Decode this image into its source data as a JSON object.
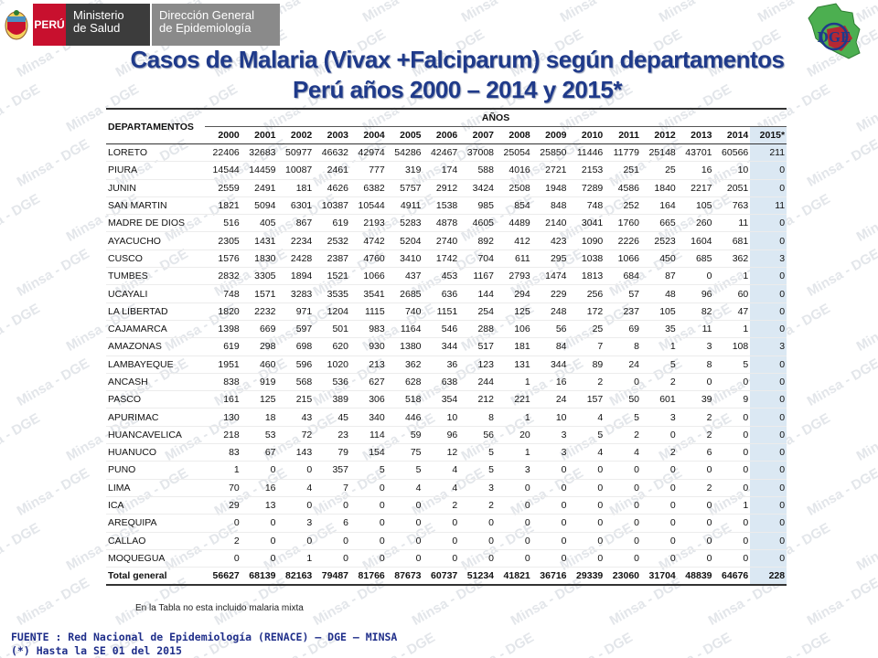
{
  "header": {
    "peru_label": "PERÚ",
    "ministry_line1": "Ministerio",
    "ministry_line2": "de Salud",
    "dge_line1": "Dirección General",
    "dge_line2": "de Epidemiología",
    "dge_logo_text": "DGE"
  },
  "watermark_text": "Minsa - DGE",
  "title_line1": "Casos de Malaria (Vivax +Falciparum) según departamentos",
  "title_line2": "Perú años 2000 – 2014 y 2015*",
  "table": {
    "dept_header": "DEPARTAMENTOS",
    "years_header": "AÑOS",
    "years": [
      "2000",
      "2001",
      "2002",
      "2003",
      "2004",
      "2005",
      "2006",
      "2007",
      "2008",
      "2009",
      "2010",
      "2011",
      "2012",
      "2013",
      "2014",
      "2015*"
    ],
    "rows": [
      {
        "dept": "LORETO",
        "values": [
          "22406",
          "32683",
          "50977",
          "46632",
          "42974",
          "54286",
          "42467",
          "37008",
          "25054",
          "25850",
          "11446",
          "11779",
          "25148",
          "43701",
          "60566",
          "211"
        ]
      },
      {
        "dept": "PIURA",
        "values": [
          "14544",
          "14459",
          "10087",
          "2461",
          "777",
          "319",
          "174",
          "588",
          "4016",
          "2721",
          "2153",
          "251",
          "25",
          "16",
          "10",
          "0"
        ]
      },
      {
        "dept": "JUNIN",
        "values": [
          "2559",
          "2491",
          "181",
          "4626",
          "6382",
          "5757",
          "2912",
          "3424",
          "2508",
          "1948",
          "7289",
          "4586",
          "1840",
          "2217",
          "2051",
          "0"
        ]
      },
      {
        "dept": "SAN MARTIN",
        "values": [
          "1821",
          "5094",
          "6301",
          "10387",
          "10544",
          "4911",
          "1538",
          "985",
          "854",
          "848",
          "748",
          "252",
          "164",
          "105",
          "763",
          "11"
        ]
      },
      {
        "dept": "MADRE DE DIOS",
        "values": [
          "516",
          "405",
          "867",
          "619",
          "2193",
          "5283",
          "4878",
          "4605",
          "4489",
          "2140",
          "3041",
          "1760",
          "665",
          "260",
          "11",
          "0"
        ]
      },
      {
        "dept": "AYACUCHO",
        "values": [
          "2305",
          "1431",
          "2234",
          "2532",
          "4742",
          "5204",
          "2740",
          "892",
          "412",
          "423",
          "1090",
          "2226",
          "2523",
          "1604",
          "681",
          "0"
        ]
      },
      {
        "dept": "CUSCO",
        "values": [
          "1576",
          "1830",
          "2428",
          "2387",
          "4760",
          "3410",
          "1742",
          "704",
          "611",
          "295",
          "1038",
          "1066",
          "450",
          "685",
          "362",
          "3"
        ]
      },
      {
        "dept": "TUMBES",
        "values": [
          "2832",
          "3305",
          "1894",
          "1521",
          "1066",
          "437",
          "453",
          "1167",
          "2793",
          "1474",
          "1813",
          "684",
          "87",
          "0",
          "1",
          "0"
        ]
      },
      {
        "dept": "UCAYALI",
        "values": [
          "748",
          "1571",
          "3283",
          "3535",
          "3541",
          "2685",
          "636",
          "144",
          "294",
          "229",
          "256",
          "57",
          "48",
          "96",
          "60",
          "0"
        ]
      },
      {
        "dept": "LA LIBERTAD",
        "values": [
          "1820",
          "2232",
          "971",
          "1204",
          "1115",
          "740",
          "1151",
          "254",
          "125",
          "248",
          "172",
          "237",
          "105",
          "82",
          "47",
          "0"
        ]
      },
      {
        "dept": "CAJAMARCA",
        "values": [
          "1398",
          "669",
          "597",
          "501",
          "983",
          "1164",
          "546",
          "288",
          "106",
          "56",
          "25",
          "69",
          "35",
          "11",
          "1",
          "0"
        ]
      },
      {
        "dept": "AMAZONAS",
        "values": [
          "619",
          "298",
          "698",
          "620",
          "930",
          "1380",
          "344",
          "517",
          "181",
          "84",
          "7",
          "8",
          "1",
          "3",
          "108",
          "3"
        ]
      },
      {
        "dept": "LAMBAYEQUE",
        "values": [
          "1951",
          "460",
          "596",
          "1020",
          "213",
          "362",
          "36",
          "123",
          "131",
          "344",
          "89",
          "24",
          "5",
          "8",
          "5",
          "0"
        ]
      },
      {
        "dept": "ANCASH",
        "values": [
          "838",
          "919",
          "568",
          "536",
          "627",
          "628",
          "638",
          "244",
          "1",
          "16",
          "2",
          "0",
          "2",
          "0",
          "0",
          "0"
        ]
      },
      {
        "dept": "PASCO",
        "values": [
          "161",
          "125",
          "215",
          "389",
          "306",
          "518",
          "354",
          "212",
          "221",
          "24",
          "157",
          "50",
          "601",
          "39",
          "9",
          "0"
        ]
      },
      {
        "dept": "APURIMAC",
        "values": [
          "130",
          "18",
          "43",
          "45",
          "340",
          "446",
          "10",
          "8",
          "1",
          "10",
          "4",
          "5",
          "3",
          "2",
          "0",
          "0"
        ]
      },
      {
        "dept": "HUANCAVELICA",
        "values": [
          "218",
          "53",
          "72",
          "23",
          "114",
          "59",
          "96",
          "56",
          "20",
          "3",
          "5",
          "2",
          "0",
          "2",
          "0",
          "0"
        ]
      },
      {
        "dept": "HUANUCO",
        "values": [
          "83",
          "67",
          "143",
          "79",
          "154",
          "75",
          "12",
          "5",
          "1",
          "3",
          "4",
          "4",
          "2",
          "6",
          "0",
          "0"
        ]
      },
      {
        "dept": "PUNO",
        "values": [
          "1",
          "0",
          "0",
          "357",
          "5",
          "5",
          "4",
          "5",
          "3",
          "0",
          "0",
          "0",
          "0",
          "0",
          "0",
          "0"
        ]
      },
      {
        "dept": "LIMA",
        "values": [
          "70",
          "16",
          "4",
          "7",
          "0",
          "4",
          "4",
          "3",
          "0",
          "0",
          "0",
          "0",
          "0",
          "2",
          "0",
          "0"
        ]
      },
      {
        "dept": "ICA",
        "values": [
          "29",
          "13",
          "0",
          "0",
          "0",
          "0",
          "2",
          "2",
          "0",
          "0",
          "0",
          "0",
          "0",
          "0",
          "1",
          "0"
        ]
      },
      {
        "dept": "AREQUIPA",
        "values": [
          "0",
          "0",
          "3",
          "6",
          "0",
          "0",
          "0",
          "0",
          "0",
          "0",
          "0",
          "0",
          "0",
          "0",
          "0",
          "0"
        ]
      },
      {
        "dept": "CALLAO",
        "values": [
          "2",
          "0",
          "0",
          "0",
          "0",
          "0",
          "0",
          "0",
          "0",
          "0",
          "0",
          "0",
          "0",
          "0",
          "0",
          "0"
        ]
      },
      {
        "dept": "MOQUEGUA",
        "values": [
          "0",
          "0",
          "1",
          "0",
          "0",
          "0",
          "0",
          "0",
          "0",
          "0",
          "0",
          "0",
          "0",
          "0",
          "0",
          "0"
        ]
      }
    ],
    "total": {
      "dept": "Total general",
      "values": [
        "56627",
        "68139",
        "82163",
        "79487",
        "81766",
        "87673",
        "60737",
        "51234",
        "41821",
        "36716",
        "29339",
        "23060",
        "31704",
        "48839",
        "64676",
        "228"
      ]
    }
  },
  "note": "En la Tabla no esta incluido malaria mixta",
  "source_line1": "FUENTE : Red Nacional de Epidemiología (RENACE) – DGE – MINSA",
  "source_line2": "(*) Hasta la SE 01 del 2015",
  "colors": {
    "title": "#1f3a8a",
    "peru_red": "#c8102e",
    "highlight_col": "#dbe8f3",
    "source_text": "#1f2e8a"
  }
}
